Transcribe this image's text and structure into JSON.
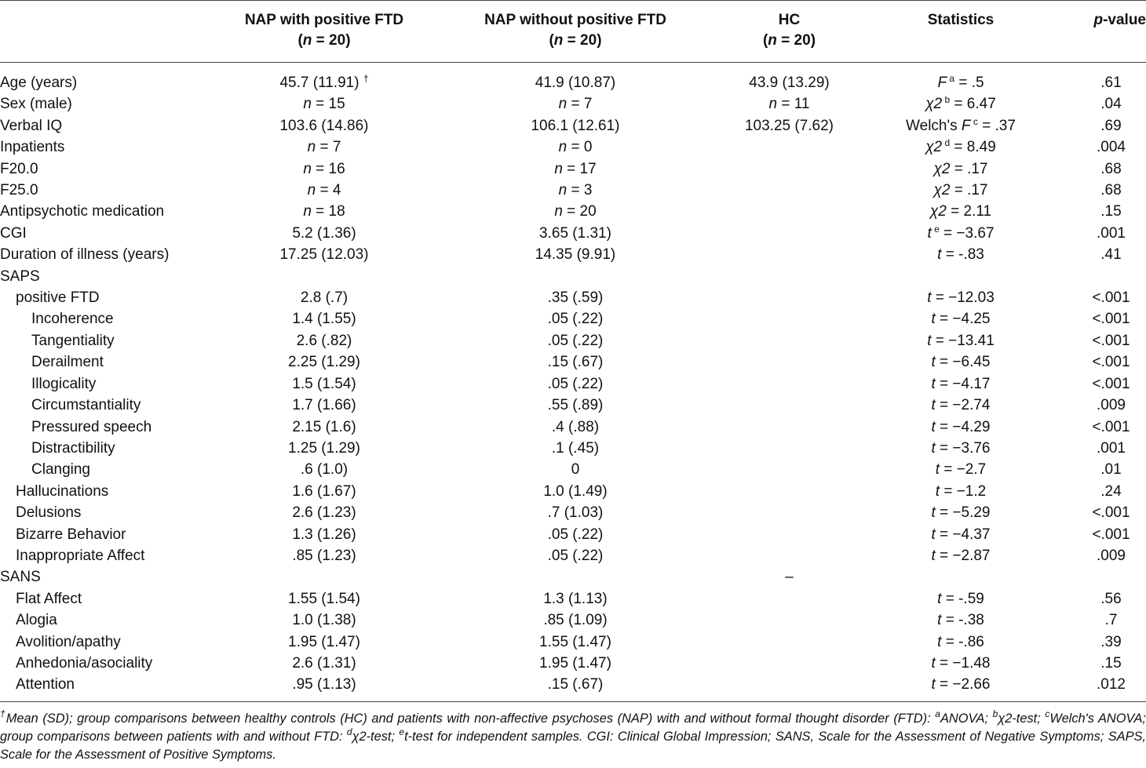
{
  "columns": [
    {
      "key": "c1",
      "title": "NAP with positive FTD",
      "n": "20"
    },
    {
      "key": "c2",
      "title": "NAP without positive FTD",
      "n": "20"
    },
    {
      "key": "c3",
      "title": "HC",
      "n": "20"
    },
    {
      "key": "c4",
      "title": "Statistics",
      "n": ""
    },
    {
      "key": "c5",
      "title": "-value",
      "pre": "p",
      "n": ""
    }
  ],
  "rows": [
    {
      "label": "Age (years)",
      "indent": 0,
      "c1": [
        [
          "45.7 (11.91) ",
          ""
        ],
        [
          "†",
          "sup"
        ]
      ],
      "c2": [
        [
          "41.9 (10.87)",
          ""
        ]
      ],
      "c3": [
        [
          "43.9 (13.29)",
          ""
        ]
      ],
      "c4": [
        [
          "F",
          "i"
        ],
        [
          " a",
          "sup"
        ],
        [
          " = .5",
          ""
        ]
      ],
      "c5": ".61"
    },
    {
      "label": "Sex (male)",
      "indent": 0,
      "c1": [
        [
          "n",
          "i"
        ],
        [
          " = 15",
          ""
        ]
      ],
      "c2": [
        [
          "n",
          "i"
        ],
        [
          " = 7",
          ""
        ]
      ],
      "c3": [
        [
          "n",
          "i"
        ],
        [
          " = 11",
          ""
        ]
      ],
      "c4": [
        [
          "χ2",
          "i"
        ],
        [
          " b",
          "sup"
        ],
        [
          " = 6.47",
          ""
        ]
      ],
      "c5": ".04"
    },
    {
      "label": "Verbal IQ",
      "indent": 0,
      "c1": [
        [
          "103.6 (14.86)",
          ""
        ]
      ],
      "c2": [
        [
          "106.1 (12.61)",
          ""
        ]
      ],
      "c3": [
        [
          "103.25 (7.62)",
          ""
        ]
      ],
      "c4": [
        [
          "Welch's ",
          ""
        ],
        [
          "F",
          "i"
        ],
        [
          " c",
          "sup"
        ],
        [
          " = .37",
          ""
        ]
      ],
      "c5": ".69"
    },
    {
      "label": "Inpatients",
      "indent": 0,
      "c1": [
        [
          "n",
          "i"
        ],
        [
          " = 7",
          ""
        ]
      ],
      "c2": [
        [
          "n",
          "i"
        ],
        [
          " = 0",
          ""
        ]
      ],
      "c3": [],
      "c4": [
        [
          "χ2",
          "i"
        ],
        [
          " d",
          "sup"
        ],
        [
          " = 8.49",
          ""
        ]
      ],
      "c5": ".004"
    },
    {
      "label": "F20.0",
      "indent": 0,
      "c1": [
        [
          "n",
          "i"
        ],
        [
          " = 16",
          ""
        ]
      ],
      "c2": [
        [
          "n",
          "i"
        ],
        [
          " = 17",
          ""
        ]
      ],
      "c3": [],
      "c4": [
        [
          "χ2",
          "i"
        ],
        [
          " = .17",
          ""
        ]
      ],
      "c5": ".68"
    },
    {
      "label": "F25.0",
      "indent": 0,
      "c1": [
        [
          "n",
          "i"
        ],
        [
          " = 4",
          ""
        ]
      ],
      "c2": [
        [
          "n",
          "i"
        ],
        [
          " = 3",
          ""
        ]
      ],
      "c3": [],
      "c4": [
        [
          "χ2",
          "i"
        ],
        [
          " = .17",
          ""
        ]
      ],
      "c5": ".68"
    },
    {
      "label": "Antipsychotic medication",
      "indent": 0,
      "c1": [
        [
          "n",
          "i"
        ],
        [
          " = 18",
          ""
        ]
      ],
      "c2": [
        [
          "n",
          "i"
        ],
        [
          " = 20",
          ""
        ]
      ],
      "c3": [],
      "c4": [
        [
          "χ2",
          "i"
        ],
        [
          " = 2.11",
          ""
        ]
      ],
      "c5": ".15"
    },
    {
      "label": "CGI",
      "indent": 0,
      "c1": [
        [
          "5.2 (1.36)",
          ""
        ]
      ],
      "c2": [
        [
          "3.65 (1.31)",
          ""
        ]
      ],
      "c3": [],
      "c4": [
        [
          "t",
          "i"
        ],
        [
          " e",
          "sup"
        ],
        [
          " = −3.67",
          ""
        ]
      ],
      "c5": ".001"
    },
    {
      "label": "Duration of illness (years)",
      "indent": 0,
      "c1": [
        [
          "17.25 (12.03)",
          ""
        ]
      ],
      "c2": [
        [
          "14.35 (9.91)",
          ""
        ]
      ],
      "c3": [],
      "c4": [
        [
          "t",
          "i"
        ],
        [
          " = -.83",
          ""
        ]
      ],
      "c5": ".41"
    },
    {
      "label": "SAPS",
      "indent": 0,
      "c1": [],
      "c2": [],
      "c3": [],
      "c4": [],
      "c5": ""
    },
    {
      "label": "positive FTD",
      "indent": 1,
      "c1": [
        [
          "2.8 (.7)",
          ""
        ]
      ],
      "c2": [
        [
          ".35 (.59)",
          ""
        ]
      ],
      "c3": [],
      "c4": [
        [
          "t",
          "i"
        ],
        [
          " = −12.03",
          ""
        ]
      ],
      "c5": "<.001"
    },
    {
      "label": "Incoherence",
      "indent": 2,
      "c1": [
        [
          "1.4 (1.55)",
          ""
        ]
      ],
      "c2": [
        [
          ".05 (.22)",
          ""
        ]
      ],
      "c3": [],
      "c4": [
        [
          "t",
          "i"
        ],
        [
          " = −4.25",
          ""
        ]
      ],
      "c5": "<.001"
    },
    {
      "label": "Tangentiality",
      "indent": 2,
      "c1": [
        [
          "2.6 (.82)",
          ""
        ]
      ],
      "c2": [
        [
          ".05 (.22)",
          ""
        ]
      ],
      "c3": [],
      "c4": [
        [
          "t",
          "i"
        ],
        [
          " = −13.41",
          ""
        ]
      ],
      "c5": "<.001"
    },
    {
      "label": "Derailment",
      "indent": 2,
      "c1": [
        [
          "2.25 (1.29)",
          ""
        ]
      ],
      "c2": [
        [
          ".15 (.67)",
          ""
        ]
      ],
      "c3": [],
      "c4": [
        [
          "t",
          "i"
        ],
        [
          " = −6.45",
          ""
        ]
      ],
      "c5": "<.001"
    },
    {
      "label": "Illogicality",
      "indent": 2,
      "c1": [
        [
          "1.5 (1.54)",
          ""
        ]
      ],
      "c2": [
        [
          ".05 (.22)",
          ""
        ]
      ],
      "c3": [],
      "c4": [
        [
          "t",
          "i"
        ],
        [
          " = −4.17",
          ""
        ]
      ],
      "c5": "<.001"
    },
    {
      "label": "Circumstantiality",
      "indent": 2,
      "c1": [
        [
          "1.7 (1.66)",
          ""
        ]
      ],
      "c2": [
        [
          ".55 (.89)",
          ""
        ]
      ],
      "c3": [],
      "c4": [
        [
          "t",
          "i"
        ],
        [
          " = −2.74",
          ""
        ]
      ],
      "c5": ".009"
    },
    {
      "label": "Pressured speech",
      "indent": 2,
      "c1": [
        [
          "2.15 (1.6)",
          ""
        ]
      ],
      "c2": [
        [
          ".4 (.88)",
          ""
        ]
      ],
      "c3": [],
      "c4": [
        [
          "t",
          "i"
        ],
        [
          " = −4.29",
          ""
        ]
      ],
      "c5": "<.001"
    },
    {
      "label": "Distractibility",
      "indent": 2,
      "c1": [
        [
          "1.25 (1.29)",
          ""
        ]
      ],
      "c2": [
        [
          ".1 (.45)",
          ""
        ]
      ],
      "c3": [],
      "c4": [
        [
          "t",
          "i"
        ],
        [
          " = −3.76",
          ""
        ]
      ],
      "c5": ".001"
    },
    {
      "label": "Clanging",
      "indent": 2,
      "c1": [
        [
          ".6 (1.0)",
          ""
        ]
      ],
      "c2": [
        [
          "0",
          ""
        ]
      ],
      "c3": [],
      "c4": [
        [
          "t",
          "i"
        ],
        [
          " = −2.7",
          ""
        ]
      ],
      "c5": ".01"
    },
    {
      "label": "Hallucinations",
      "indent": 1,
      "c1": [
        [
          "1.6 (1.67)",
          ""
        ]
      ],
      "c2": [
        [
          "1.0 (1.49)",
          ""
        ]
      ],
      "c3": [],
      "c4": [
        [
          "t",
          "i"
        ],
        [
          " = −1.2",
          ""
        ]
      ],
      "c5": ".24"
    },
    {
      "label": "Delusions",
      "indent": 1,
      "c1": [
        [
          "2.6 (1.23)",
          ""
        ]
      ],
      "c2": [
        [
          ".7 (1.03)",
          ""
        ]
      ],
      "c3": [],
      "c4": [
        [
          "t",
          "i"
        ],
        [
          " = −5.29",
          ""
        ]
      ],
      "c5": "<.001"
    },
    {
      "label": "Bizarre Behavior",
      "indent": 1,
      "c1": [
        [
          "1.3 (1.26)",
          ""
        ]
      ],
      "c2": [
        [
          ".05 (.22)",
          ""
        ]
      ],
      "c3": [],
      "c4": [
        [
          "t",
          "i"
        ],
        [
          " = −4.37",
          ""
        ]
      ],
      "c5": "<.001"
    },
    {
      "label": "Inappropriate Affect",
      "indent": 1,
      "c1": [
        [
          ".85 (1.23)",
          ""
        ]
      ],
      "c2": [
        [
          ".05 (.22)",
          ""
        ]
      ],
      "c3": [],
      "c4": [
        [
          "t",
          "i"
        ],
        [
          " = −2.87",
          ""
        ]
      ],
      "c5": ".009"
    },
    {
      "label": "SANS",
      "indent": 0,
      "c1": [],
      "c2": [],
      "c3": [
        [
          "–",
          ""
        ]
      ],
      "c4": [],
      "c5": ""
    },
    {
      "label": "Flat Affect",
      "indent": 1,
      "c1": [
        [
          "1.55 (1.54)",
          ""
        ]
      ],
      "c2": [
        [
          "1.3 (1.13)",
          ""
        ]
      ],
      "c3": [],
      "c4": [
        [
          "t",
          "i"
        ],
        [
          " = -.59",
          ""
        ]
      ],
      "c5": ".56"
    },
    {
      "label": "Alogia",
      "indent": 1,
      "c1": [
        [
          "1.0 (1.38)",
          ""
        ]
      ],
      "c2": [
        [
          ".85 (1.09)",
          ""
        ]
      ],
      "c3": [],
      "c4": [
        [
          "t",
          "i"
        ],
        [
          " = -.38",
          ""
        ]
      ],
      "c5": ".7"
    },
    {
      "label": "Avolition/apathy",
      "indent": 1,
      "c1": [
        [
          "1.95 (1.47)",
          ""
        ]
      ],
      "c2": [
        [
          "1.55 (1.47)",
          ""
        ]
      ],
      "c3": [],
      "c4": [
        [
          "t",
          "i"
        ],
        [
          " = -.86",
          ""
        ]
      ],
      "c5": ".39"
    },
    {
      "label": "Anhedonia/asociality",
      "indent": 1,
      "c1": [
        [
          "2.6 (1.31)",
          ""
        ]
      ],
      "c2": [
        [
          "1.95 (1.47)",
          ""
        ]
      ],
      "c3": [],
      "c4": [
        [
          "t",
          "i"
        ],
        [
          " = −1.48",
          ""
        ]
      ],
      "c5": ".15"
    },
    {
      "label": "Attention",
      "indent": 1,
      "c1": [
        [
          ".95 (1.13)",
          ""
        ]
      ],
      "c2": [
        [
          ".15 (.67)",
          ""
        ]
      ],
      "c3": [],
      "c4": [
        [
          "t",
          "i"
        ],
        [
          " = −2.66",
          ""
        ]
      ],
      "c5": ".012"
    }
  ],
  "footnote": [
    [
      "†",
      "sup"
    ],
    [
      "Mean (SD); group comparisons between healthy controls (HC) and patients with non-affective psychoses (NAP) with and without formal thought disorder (FTD): ",
      ""
    ],
    [
      "a",
      "sup"
    ],
    [
      "ANOVA; ",
      ""
    ],
    [
      "b",
      "sup"
    ],
    [
      "χ2-test; ",
      ""
    ],
    [
      "c",
      "sup"
    ],
    [
      "Welch's ANOVA; group comparisons between patients with and without FTD: ",
      ""
    ],
    [
      "d",
      "sup"
    ],
    [
      "χ2-test; ",
      ""
    ],
    [
      "e",
      "sup"
    ],
    [
      "t-test for independent samples. CGI: Clinical Global Impression; SANS, Scale for the Assessment of Negative Symptoms; SAPS, Scale for the Assessment of Positive Symptoms.",
      ""
    ]
  ]
}
